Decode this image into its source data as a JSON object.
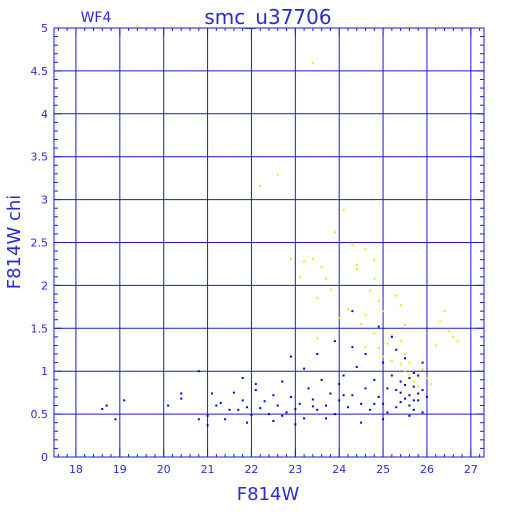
{
  "chart_data": {
    "type": "scatter",
    "title": "smc_u37706",
    "subtitle": "WF4",
    "xlabel": "F814W",
    "ylabel": "F814W chi",
    "xlim": [
      17.5,
      27.3
    ],
    "ylim": [
      0,
      5
    ],
    "grid": true,
    "x_ticks": [
      "18",
      "19",
      "20",
      "21",
      "22",
      "23",
      "24",
      "25",
      "26",
      "27"
    ],
    "y_ticks": [
      "0",
      "0.5",
      "1",
      "1.5",
      "2",
      "2.5",
      "3",
      "3.5",
      "4",
      "4.5",
      "5"
    ],
    "colors": {
      "axis": "#1a1ad8",
      "label": "#2a2ad0",
      "blue_series": "#0000cc",
      "yellow_series": "#ffe000"
    },
    "series": [
      {
        "color": "yellow",
        "points": [
          [
            23.4,
            4.59
          ],
          [
            22.2,
            3.16
          ],
          [
            22.6,
            3.29
          ],
          [
            24.1,
            2.88
          ],
          [
            24.3,
            2.47
          ],
          [
            24.4,
            2.24
          ],
          [
            24.4,
            2.19
          ],
          [
            24.6,
            2.42
          ],
          [
            24.8,
            2.3
          ],
          [
            23.2,
            2.28
          ],
          [
            23.1,
            2.1
          ],
          [
            23.4,
            2.31
          ],
          [
            23.6,
            2.21
          ],
          [
            23.5,
            1.85
          ],
          [
            23.7,
            2.08
          ],
          [
            23.9,
            2.62
          ],
          [
            23.8,
            1.95
          ],
          [
            24.2,
            1.72
          ],
          [
            24.6,
            1.65
          ],
          [
            24.7,
            1.94
          ],
          [
            24.8,
            2.08
          ],
          [
            24.5,
            1.55
          ],
          [
            24.9,
            1.82
          ],
          [
            25.0,
            1.7
          ],
          [
            25.3,
            1.88
          ],
          [
            25.4,
            1.77
          ],
          [
            25.5,
            1.54
          ],
          [
            24.8,
            1.44
          ],
          [
            25.1,
            1.32
          ],
          [
            25.2,
            1.42
          ],
          [
            24.6,
            1.28
          ],
          [
            24.9,
            1.27
          ],
          [
            25.3,
            1.25
          ],
          [
            25.0,
            1.17
          ],
          [
            25.2,
            1.12
          ],
          [
            25.4,
            1.08
          ],
          [
            25.5,
            1.0
          ],
          [
            25.6,
            0.96
          ],
          [
            25.8,
            0.94
          ],
          [
            25.9,
            1.02
          ],
          [
            26.0,
            0.92
          ],
          [
            26.1,
            0.85
          ],
          [
            25.7,
            0.88
          ],
          [
            25.5,
            1.2
          ],
          [
            25.6,
            1.1
          ],
          [
            25.4,
            1.35
          ],
          [
            26.3,
            1.58
          ],
          [
            26.5,
            1.47
          ],
          [
            26.6,
            1.4
          ],
          [
            26.7,
            1.35
          ],
          [
            26.4,
            1.7
          ],
          [
            26.2,
            1.3
          ],
          [
            23.5,
            1.38
          ],
          [
            24.0,
            1.62
          ],
          [
            22.9,
            2.31
          ],
          [
            25.8,
            0.82
          ]
        ]
      },
      {
        "color": "blue",
        "points": [
          [
            18.6,
            0.56
          ],
          [
            18.7,
            0.6
          ],
          [
            18.9,
            0.44
          ],
          [
            19.1,
            0.66
          ],
          [
            20.1,
            0.6
          ],
          [
            20.4,
            0.74
          ],
          [
            20.4,
            0.68
          ],
          [
            20.8,
            0.44
          ],
          [
            20.8,
            1.0
          ],
          [
            21.0,
            0.48
          ],
          [
            21.0,
            0.37
          ],
          [
            21.1,
            0.74
          ],
          [
            21.2,
            0.6
          ],
          [
            21.3,
            0.63
          ],
          [
            21.4,
            0.44
          ],
          [
            21.5,
            0.55
          ],
          [
            21.6,
            0.75
          ],
          [
            21.7,
            0.55
          ],
          [
            21.8,
            0.66
          ],
          [
            21.8,
            0.92
          ],
          [
            21.9,
            0.58
          ],
          [
            22.0,
            0.49
          ],
          [
            22.1,
            0.85
          ],
          [
            22.2,
            0.57
          ],
          [
            22.3,
            0.65
          ],
          [
            22.4,
            0.5
          ],
          [
            22.5,
            0.72
          ],
          [
            22.6,
            0.6
          ],
          [
            22.7,
            0.88
          ],
          [
            22.8,
            0.52
          ],
          [
            22.9,
            0.7
          ],
          [
            23.0,
            0.56
          ],
          [
            23.1,
            0.62
          ],
          [
            23.2,
            0.45
          ],
          [
            23.3,
            0.8
          ],
          [
            23.4,
            0.67
          ],
          [
            23.5,
            0.55
          ],
          [
            23.6,
            0.9
          ],
          [
            23.7,
            0.6
          ],
          [
            23.8,
            0.74
          ],
          [
            23.9,
            0.5
          ],
          [
            24.0,
            0.66
          ],
          [
            24.0,
            0.85
          ],
          [
            24.1,
            0.95
          ],
          [
            24.2,
            0.58
          ],
          [
            24.3,
            0.72
          ],
          [
            24.4,
            1.05
          ],
          [
            24.5,
            0.62
          ],
          [
            24.6,
            0.8
          ],
          [
            24.7,
            0.55
          ],
          [
            24.8,
            0.9
          ],
          [
            24.9,
            0.7
          ],
          [
            25.0,
            0.62
          ],
          [
            25.0,
            1.1
          ],
          [
            25.1,
            0.8
          ],
          [
            25.2,
            0.95
          ],
          [
            25.3,
            0.58
          ],
          [
            25.3,
            1.25
          ],
          [
            25.4,
            0.75
          ],
          [
            25.4,
            0.88
          ],
          [
            25.5,
            0.68
          ],
          [
            25.5,
            1.15
          ],
          [
            25.6,
            0.72
          ],
          [
            25.6,
            0.6
          ],
          [
            25.7,
            0.82
          ],
          [
            25.7,
            0.55
          ],
          [
            25.8,
            0.66
          ],
          [
            25.8,
            0.95
          ],
          [
            25.9,
            0.78
          ],
          [
            25.9,
            0.52
          ],
          [
            26.0,
            0.7
          ],
          [
            25.2,
            1.4
          ],
          [
            24.9,
            1.52
          ],
          [
            24.6,
            1.2
          ],
          [
            24.3,
            1.28
          ],
          [
            23.9,
            1.35
          ],
          [
            24.3,
            1.7
          ],
          [
            23.5,
            1.2
          ],
          [
            22.9,
            1.17
          ],
          [
            23.2,
            1.03
          ],
          [
            22.1,
            0.78
          ],
          [
            21.9,
            0.4
          ],
          [
            22.5,
            0.42
          ],
          [
            23.0,
            0.38
          ],
          [
            23.7,
            0.45
          ],
          [
            24.5,
            0.4
          ],
          [
            25.0,
            0.44
          ],
          [
            25.6,
            0.48
          ],
          [
            25.4,
            0.64
          ],
          [
            25.1,
            0.52
          ],
          [
            24.8,
            0.62
          ],
          [
            24.1,
            0.72
          ],
          [
            23.4,
            0.59
          ],
          [
            22.7,
            0.48
          ],
          [
            25.7,
            0.98
          ],
          [
            25.9,
            1.1
          ],
          [
            25.5,
            0.84
          ],
          [
            25.3,
            0.78
          ],
          [
            25.6,
            0.92
          ],
          [
            25.8,
            0.74
          ],
          [
            25.7,
            0.66
          ]
        ]
      }
    ]
  }
}
